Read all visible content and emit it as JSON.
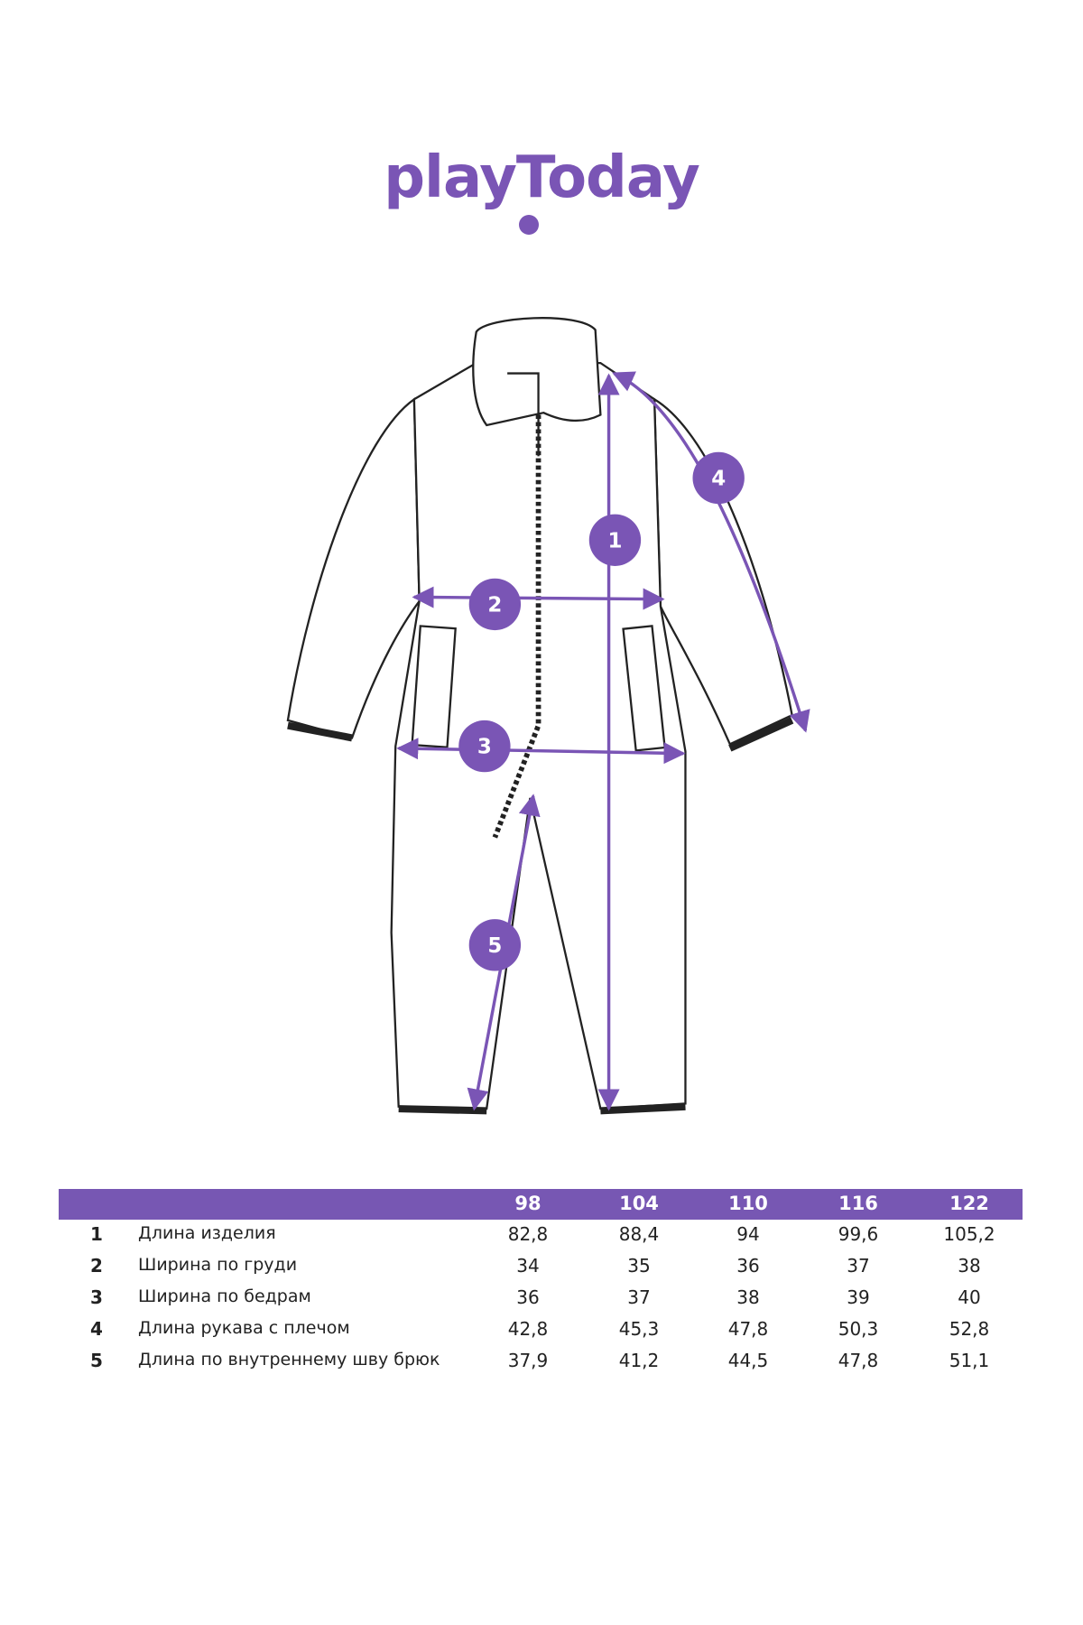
{
  "brand": {
    "logo_text": "playToday",
    "color": "#7a55b5"
  },
  "diagram": {
    "markers": [
      "1",
      "2",
      "3",
      "4",
      "5"
    ],
    "accent_color": "#7a55b5"
  },
  "size_table": {
    "header_color": "#7757b3",
    "sizes": [
      "98",
      "104",
      "110",
      "116",
      "122"
    ],
    "rows": [
      {
        "num": "1",
        "label": "Длина изделия",
        "values": [
          "82,8",
          "88,4",
          "94",
          "99,6",
          "105,2"
        ]
      },
      {
        "num": "2",
        "label": "Ширина по груди",
        "values": [
          "34",
          "35",
          "36",
          "37",
          "38"
        ]
      },
      {
        "num": "3",
        "label": "Ширина по бедрам",
        "values": [
          "36",
          "37",
          "38",
          "39",
          "40"
        ]
      },
      {
        "num": "4",
        "label": "Длина рукава с плечом",
        "values": [
          "42,8",
          "45,3",
          "47,8",
          "50,3",
          "52,8"
        ]
      },
      {
        "num": "5",
        "label": "Длина по внутреннему шву брюк",
        "values": [
          "37,9",
          "41,2",
          "44,5",
          "47,8",
          "51,1"
        ]
      }
    ]
  }
}
